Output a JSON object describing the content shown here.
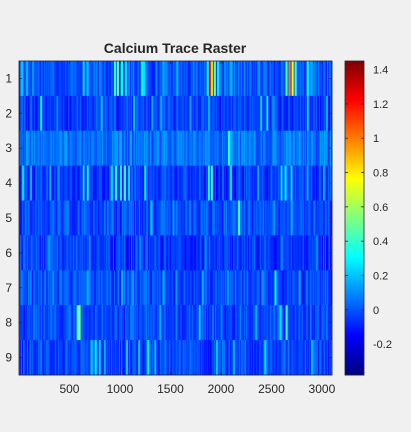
{
  "chart_data": {
    "type": "heatmap",
    "title": "Calcium Trace Raster",
    "xlabel": "",
    "ylabel": "",
    "x_range": [
      0,
      3100
    ],
    "x_ticks": [
      500,
      1000,
      1500,
      2000,
      2500,
      3000
    ],
    "x_tick_labels": [
      "500",
      "1000",
      "1500",
      "2000",
      "2500",
      "3000"
    ],
    "rows": [
      1,
      2,
      3,
      4,
      5,
      6,
      7,
      8,
      9
    ],
    "row_tick_labels": [
      "1",
      "2",
      "3",
      "4",
      "5",
      "6",
      "7",
      "8",
      "9"
    ],
    "colormap": "jet",
    "clim": [
      -0.38,
      1.45
    ],
    "colorbar_ticks": [
      -0.2,
      0,
      0.2,
      0.4,
      0.6,
      0.8,
      1,
      1.2,
      1.4
    ],
    "colorbar_tick_labels": [
      "-0.2",
      "0",
      "0.2",
      "0.4",
      "0.6",
      "0.8",
      "1",
      "1.2",
      "1.4"
    ],
    "baseline": [
      0.0,
      -0.05,
      0.05,
      -0.05,
      -0.02,
      -0.05,
      -0.02,
      -0.02,
      -0.02
    ],
    "events": [
      [
        [
          30,
          0.25
        ],
        [
          80,
          0.2
        ],
        [
          140,
          0.15
        ],
        [
          640,
          0.3
        ],
        [
          680,
          0.25
        ],
        [
          950,
          0.5
        ],
        [
          980,
          0.6
        ],
        [
          1020,
          0.4
        ],
        [
          1060,
          0.3
        ],
        [
          1220,
          0.4
        ],
        [
          1240,
          0.3
        ],
        [
          1430,
          0.2
        ],
        [
          1570,
          0.2
        ],
        [
          1870,
          0.35
        ],
        [
          1890,
          1.45
        ],
        [
          1910,
          0.8
        ],
        [
          1940,
          0.6
        ],
        [
          1970,
          0.35
        ],
        [
          2100,
          0.2
        ],
        [
          2380,
          0.15
        ],
        [
          2650,
          0.5
        ],
        [
          2680,
          1.2
        ],
        [
          2710,
          0.9
        ],
        [
          2740,
          0.5
        ],
        [
          2860,
          0.4
        ],
        [
          2900,
          0.2
        ]
      ],
      [
        [
          220,
          0.4
        ],
        [
          380,
          0.15
        ],
        [
          820,
          0.25
        ],
        [
          1140,
          0.25
        ],
        [
          1320,
          0.2
        ],
        [
          1410,
          0.2
        ],
        [
          1700,
          0.15
        ],
        [
          1880,
          0.2
        ],
        [
          2400,
          0.3
        ],
        [
          2460,
          0.35
        ],
        [
          2520,
          0.15
        ],
        [
          2860,
          0.3
        ],
        [
          3050,
          0.2
        ]
      ],
      [
        [
          2080,
          0.45
        ],
        [
          2100,
          0.2
        ]
      ],
      [
        [
          40,
          0.3
        ],
        [
          120,
          0.2
        ],
        [
          310,
          0.2
        ],
        [
          390,
          0.15
        ],
        [
          640,
          0.35
        ],
        [
          680,
          0.4
        ],
        [
          920,
          0.3
        ],
        [
          960,
          0.45
        ],
        [
          1010,
          0.35
        ],
        [
          1050,
          0.45
        ],
        [
          1090,
          0.3
        ],
        [
          1250,
          0.35
        ],
        [
          1880,
          0.4
        ],
        [
          1910,
          0.5
        ],
        [
          2100,
          0.3
        ],
        [
          2370,
          0.2
        ],
        [
          2600,
          0.35
        ],
        [
          2640,
          0.35
        ],
        [
          2700,
          0.3
        ],
        [
          2860,
          0.2
        ],
        [
          3020,
          0.2
        ]
      ],
      [
        [
          1310,
          0.25
        ],
        [
          1530,
          0.2
        ],
        [
          2180,
          0.5
        ],
        [
          2530,
          0.15
        ],
        [
          2700,
          0.2
        ]
      ],
      [
        [
          300,
          0.15
        ],
        [
          700,
          0.12
        ],
        [
          1200,
          0.12
        ],
        [
          1850,
          0.12
        ],
        [
          2600,
          0.12
        ],
        [
          2950,
          0.12
        ]
      ],
      [
        [
          340,
          0.15
        ],
        [
          680,
          0.2
        ],
        [
          1020,
          0.2
        ],
        [
          1130,
          0.15
        ],
        [
          1430,
          0.2
        ],
        [
          1560,
          0.15
        ],
        [
          1820,
          0.2
        ],
        [
          2070,
          0.15
        ],
        [
          2410,
          0.15
        ],
        [
          2540,
          0.35
        ],
        [
          2780,
          0.2
        ]
      ],
      [
        [
          580,
          0.5
        ],
        [
          600,
          0.65
        ],
        [
          1400,
          0.2
        ],
        [
          1790,
          0.3
        ],
        [
          2350,
          0.2
        ],
        [
          2590,
          0.3
        ],
        [
          2650,
          0.45
        ]
      ],
      [
        [
          720,
          0.25
        ],
        [
          760,
          0.35
        ],
        [
          800,
          0.3
        ],
        [
          850,
          0.2
        ],
        [
          1070,
          0.25
        ],
        [
          1190,
          0.25
        ],
        [
          1280,
          0.35
        ],
        [
          1350,
          0.25
        ],
        [
          1960,
          0.25
        ],
        [
          2130,
          0.2
        ],
        [
          2440,
          0.3
        ],
        [
          2900,
          0.25
        ]
      ]
    ]
  }
}
